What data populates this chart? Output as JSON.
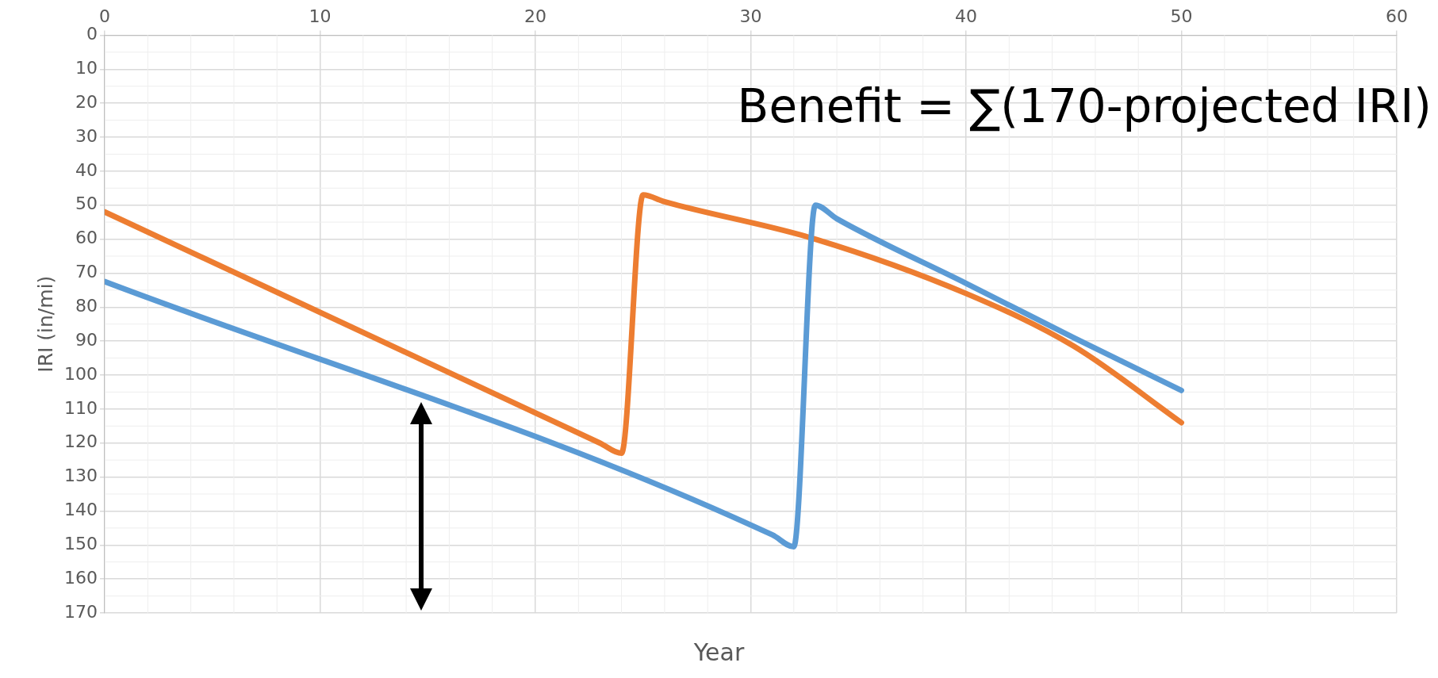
{
  "chart_data": {
    "type": "line",
    "xlabel": "Year",
    "ylabel": "IRI (in/mi)",
    "annotations": [
      "Benefit = ∑(170-projected IRI)"
    ],
    "xlim": [
      0,
      60
    ],
    "xticks": [
      0,
      10,
      20,
      30,
      40,
      50,
      60
    ],
    "ylim": [
      170,
      0
    ],
    "yticks": [
      0,
      10,
      20,
      30,
      40,
      50,
      60,
      70,
      80,
      90,
      100,
      110,
      120,
      130,
      140,
      150,
      160,
      170
    ],
    "grid": true,
    "legend": false,
    "marker": "none",
    "series": [
      {
        "color": "#5b9bd5",
        "x": [
          0,
          31,
          32,
          33,
          34,
          40,
          45,
          50
        ],
        "values": [
          72.5,
          147,
          150.5,
          50,
          54,
          73,
          89,
          104.5
        ]
      },
      {
        "color": "#ed7d31",
        "x": [
          0,
          23,
          24,
          25,
          26,
          33,
          40,
          45,
          50
        ],
        "values": [
          52,
          120,
          123,
          47,
          49,
          60,
          76,
          91.5,
          114
        ]
      }
    ]
  }
}
